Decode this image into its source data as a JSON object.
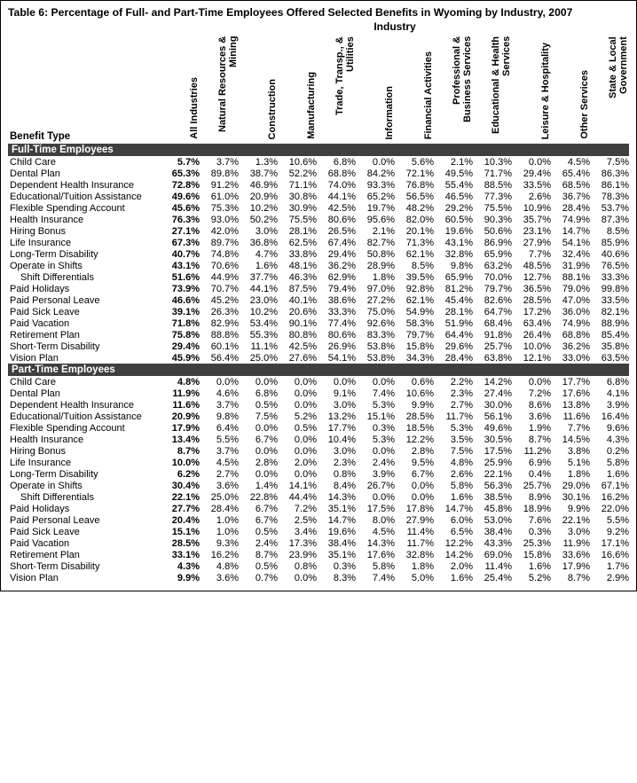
{
  "title_prefix": "Table 6:",
  "title_rest": " Percentage of Full- and Part-Time Employees Offered Selected Benefits in Wyoming by Industry, 2007",
  "industry_header": "Industry",
  "benefit_header": "Benefit Type",
  "columns": [
    "All Industries",
    "Natural Resources & Mining",
    "Construction",
    "Manufacturing",
    "Trade, Transp., & Utilities",
    "Information",
    "Financial Activities",
    "Professional & Business Services",
    "Educational & Health Services",
    "Leisure & Hospitality",
    "Other Services",
    "State & Local Government"
  ],
  "sections": [
    {
      "label": "Full-Time Employees",
      "rows": [
        {
          "label": "Child Care",
          "indent": false,
          "values": [
            "5.7%",
            "3.7%",
            "1.3%",
            "10.6%",
            "6.8%",
            "0.0%",
            "5.6%",
            "2.1%",
            "10.3%",
            "0.0%",
            "4.5%",
            "7.5%"
          ]
        },
        {
          "label": "Dental Plan",
          "indent": false,
          "values": [
            "65.3%",
            "89.8%",
            "38.7%",
            "52.2%",
            "68.8%",
            "84.2%",
            "72.1%",
            "49.5%",
            "71.7%",
            "29.4%",
            "65.4%",
            "86.3%"
          ]
        },
        {
          "label": "Dependent Health Insurance",
          "indent": false,
          "values": [
            "72.8%",
            "91.2%",
            "46.9%",
            "71.1%",
            "74.0%",
            "93.3%",
            "76.8%",
            "55.4%",
            "88.5%",
            "33.5%",
            "68.5%",
            "86.1%"
          ]
        },
        {
          "label": "Educational/Tuition Assistance",
          "indent": false,
          "values": [
            "49.6%",
            "61.0%",
            "20.9%",
            "30.8%",
            "44.1%",
            "65.2%",
            "56.5%",
            "46.5%",
            "77.3%",
            "2.6%",
            "36.7%",
            "78.3%"
          ]
        },
        {
          "label": "Flexible Spending Account",
          "indent": false,
          "values": [
            "45.6%",
            "75.3%",
            "10.2%",
            "30.9%",
            "42.5%",
            "19.7%",
            "48.2%",
            "29.2%",
            "75.5%",
            "10.9%",
            "28.4%",
            "53.7%"
          ]
        },
        {
          "label": "Health Insurance",
          "indent": false,
          "values": [
            "76.3%",
            "93.0%",
            "50.2%",
            "75.5%",
            "80.6%",
            "95.6%",
            "82.0%",
            "60.5%",
            "90.3%",
            "35.7%",
            "74.9%",
            "87.3%"
          ]
        },
        {
          "label": "Hiring Bonus",
          "indent": false,
          "values": [
            "27.1%",
            "42.0%",
            "3.0%",
            "28.1%",
            "26.5%",
            "2.1%",
            "20.1%",
            "19.6%",
            "50.6%",
            "23.1%",
            "14.7%",
            "8.5%"
          ]
        },
        {
          "label": "Life Insurance",
          "indent": false,
          "values": [
            "67.3%",
            "89.7%",
            "36.8%",
            "62.5%",
            "67.4%",
            "82.7%",
            "71.3%",
            "43.1%",
            "86.9%",
            "27.9%",
            "54.1%",
            "85.9%"
          ]
        },
        {
          "label": "Long-Term Disability",
          "indent": false,
          "values": [
            "40.7%",
            "74.8%",
            "4.7%",
            "33.8%",
            "29.4%",
            "50.8%",
            "62.1%",
            "32.8%",
            "65.9%",
            "7.7%",
            "32.4%",
            "40.6%"
          ]
        },
        {
          "label": "Operate in Shifts",
          "indent": false,
          "values": [
            "43.1%",
            "70.6%",
            "1.6%",
            "48.1%",
            "36.2%",
            "28.9%",
            "8.5%",
            "9.8%",
            "63.2%",
            "48.5%",
            "31.9%",
            "76.5%"
          ]
        },
        {
          "label": "Shift Differentials",
          "indent": true,
          "values": [
            "51.6%",
            "44.9%",
            "37.7%",
            "46.3%",
            "62.9%",
            "1.8%",
            "39.5%",
            "65.9%",
            "70.0%",
            "12.7%",
            "88.1%",
            "33.3%"
          ]
        },
        {
          "label": "Paid Holidays",
          "indent": false,
          "values": [
            "73.9%",
            "70.7%",
            "44.1%",
            "87.5%",
            "79.4%",
            "97.0%",
            "92.8%",
            "81.2%",
            "79.7%",
            "36.5%",
            "79.0%",
            "99.8%"
          ]
        },
        {
          "label": "Paid Personal Leave",
          "indent": false,
          "values": [
            "46.6%",
            "45.2%",
            "23.0%",
            "40.1%",
            "38.6%",
            "27.2%",
            "62.1%",
            "45.4%",
            "82.6%",
            "28.5%",
            "47.0%",
            "33.5%"
          ]
        },
        {
          "label": "Paid Sick Leave",
          "indent": false,
          "values": [
            "39.1%",
            "26.3%",
            "10.2%",
            "20.6%",
            "33.3%",
            "75.0%",
            "54.9%",
            "28.1%",
            "64.7%",
            "17.2%",
            "36.0%",
            "82.1%"
          ]
        },
        {
          "label": "Paid Vacation",
          "indent": false,
          "values": [
            "71.8%",
            "82.9%",
            "53.4%",
            "90.1%",
            "77.4%",
            "92.6%",
            "58.3%",
            "51.9%",
            "68.4%",
            "63.4%",
            "74.9%",
            "88.9%"
          ]
        },
        {
          "label": "Retirement Plan",
          "indent": false,
          "values": [
            "75.8%",
            "88.8%",
            "55.3%",
            "80.8%",
            "80.6%",
            "83.3%",
            "79.7%",
            "64.4%",
            "91.8%",
            "26.4%",
            "68.8%",
            "85.4%"
          ]
        },
        {
          "label": "Short-Term Disability",
          "indent": false,
          "values": [
            "29.4%",
            "60.1%",
            "11.1%",
            "42.5%",
            "26.9%",
            "53.8%",
            "15.8%",
            "29.6%",
            "25.7%",
            "10.0%",
            "36.2%",
            "35.8%"
          ]
        },
        {
          "label": "Vision Plan",
          "indent": false,
          "values": [
            "45.9%",
            "56.4%",
            "25.0%",
            "27.6%",
            "54.1%",
            "53.8%",
            "34.3%",
            "28.4%",
            "63.8%",
            "12.1%",
            "33.0%",
            "63.5%"
          ]
        }
      ]
    },
    {
      "label": "Part-Time Employees",
      "rows": [
        {
          "label": "Child Care",
          "indent": false,
          "values": [
            "4.8%",
            "0.0%",
            "0.0%",
            "0.0%",
            "0.0%",
            "0.0%",
            "0.6%",
            "2.2%",
            "14.2%",
            "0.0%",
            "17.7%",
            "6.8%"
          ]
        },
        {
          "label": "Dental Plan",
          "indent": false,
          "values": [
            "11.9%",
            "4.6%",
            "6.8%",
            "0.0%",
            "9.1%",
            "7.4%",
            "10.6%",
            "2.3%",
            "27.4%",
            "7.2%",
            "17.6%",
            "4.1%"
          ]
        },
        {
          "label": "Dependent Health Insurance",
          "indent": false,
          "values": [
            "11.6%",
            "3.7%",
            "0.5%",
            "0.0%",
            "3.0%",
            "5.3%",
            "9.9%",
            "2.7%",
            "30.0%",
            "8.6%",
            "13.8%",
            "3.9%"
          ]
        },
        {
          "label": "Educational/Tuition Assistance",
          "indent": false,
          "values": [
            "20.9%",
            "9.8%",
            "7.5%",
            "5.2%",
            "13.2%",
            "15.1%",
            "28.5%",
            "11.7%",
            "56.1%",
            "3.6%",
            "11.6%",
            "16.4%"
          ]
        },
        {
          "label": "Flexible Spending Account",
          "indent": false,
          "values": [
            "17.9%",
            "6.4%",
            "0.0%",
            "0.5%",
            "17.7%",
            "0.3%",
            "18.5%",
            "5.3%",
            "49.6%",
            "1.9%",
            "7.7%",
            "9.6%"
          ]
        },
        {
          "label": "Health Insurance",
          "indent": false,
          "values": [
            "13.4%",
            "5.5%",
            "6.7%",
            "0.0%",
            "10.4%",
            "5.3%",
            "12.2%",
            "3.5%",
            "30.5%",
            "8.7%",
            "14.5%",
            "4.3%"
          ]
        },
        {
          "label": "Hiring Bonus",
          "indent": false,
          "values": [
            "8.7%",
            "3.7%",
            "0.0%",
            "0.0%",
            "3.0%",
            "0.0%",
            "2.8%",
            "7.5%",
            "17.5%",
            "11.2%",
            "3.8%",
            "0.2%"
          ]
        },
        {
          "label": "Life Insurance",
          "indent": false,
          "values": [
            "10.0%",
            "4.5%",
            "2.8%",
            "2.0%",
            "2.3%",
            "2.4%",
            "9.5%",
            "4.8%",
            "25.9%",
            "6.9%",
            "5.1%",
            "5.8%"
          ]
        },
        {
          "label": "Long-Term Disability",
          "indent": false,
          "values": [
            "6.2%",
            "2.7%",
            "0.0%",
            "0.0%",
            "0.8%",
            "3.9%",
            "6.7%",
            "2.6%",
            "22.1%",
            "0.4%",
            "1.8%",
            "1.6%"
          ]
        },
        {
          "label": "Operate in Shifts",
          "indent": false,
          "values": [
            "30.4%",
            "3.6%",
            "1.4%",
            "14.1%",
            "8.4%",
            "26.7%",
            "0.0%",
            "5.8%",
            "56.3%",
            "25.7%",
            "29.0%",
            "67.1%"
          ]
        },
        {
          "label": "Shift Differentials",
          "indent": true,
          "values": [
            "22.1%",
            "25.0%",
            "22.8%",
            "44.4%",
            "14.3%",
            "0.0%",
            "0.0%",
            "1.6%",
            "38.5%",
            "8.9%",
            "30.1%",
            "16.2%"
          ]
        },
        {
          "label": "Paid Holidays",
          "indent": false,
          "values": [
            "27.7%",
            "28.4%",
            "6.7%",
            "7.2%",
            "35.1%",
            "17.5%",
            "17.8%",
            "14.7%",
            "45.8%",
            "18.9%",
            "9.9%",
            "22.0%"
          ]
        },
        {
          "label": "Paid Personal Leave",
          "indent": false,
          "values": [
            "20.4%",
            "1.0%",
            "6.7%",
            "2.5%",
            "14.7%",
            "8.0%",
            "27.9%",
            "6.0%",
            "53.0%",
            "7.6%",
            "22.1%",
            "5.5%"
          ]
        },
        {
          "label": "Paid Sick Leave",
          "indent": false,
          "values": [
            "15.1%",
            "1.0%",
            "0.5%",
            "3.4%",
            "19.6%",
            "4.5%",
            "11.4%",
            "6.5%",
            "38.4%",
            "0.3%",
            "3.0%",
            "9.2%"
          ]
        },
        {
          "label": "Paid Vacation",
          "indent": false,
          "values": [
            "28.5%",
            "9.3%",
            "2.4%",
            "17.3%",
            "38.4%",
            "14.3%",
            "11.7%",
            "12.2%",
            "43.3%",
            "25.3%",
            "11.9%",
            "17.1%"
          ]
        },
        {
          "label": "Retirement Plan",
          "indent": false,
          "values": [
            "33.1%",
            "16.2%",
            "8.7%",
            "23.9%",
            "35.1%",
            "17.6%",
            "32.8%",
            "14.2%",
            "69.0%",
            "15.8%",
            "33.6%",
            "16.6%"
          ]
        },
        {
          "label": "Short-Term Disability",
          "indent": false,
          "values": [
            "4.3%",
            "4.8%",
            "0.5%",
            "0.8%",
            "0.3%",
            "5.8%",
            "1.8%",
            "2.0%",
            "11.4%",
            "1.6%",
            "17.9%",
            "1.7%"
          ]
        },
        {
          "label": "Vision Plan",
          "indent": false,
          "values": [
            "9.9%",
            "3.6%",
            "0.7%",
            "0.0%",
            "8.3%",
            "7.4%",
            "5.0%",
            "1.6%",
            "25.4%",
            "5.2%",
            "8.7%",
            "2.9%"
          ]
        }
      ]
    }
  ]
}
